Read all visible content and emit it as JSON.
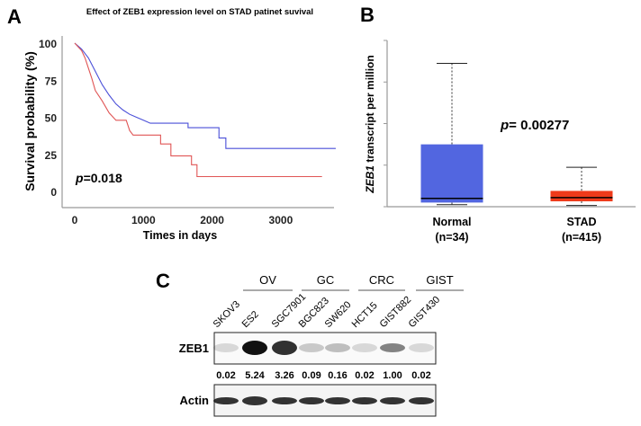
{
  "panel_labels": {
    "a": "A",
    "b": "B",
    "c": "C"
  },
  "chart_data": [
    {
      "type": "line",
      "panel": "A",
      "title": "Effect of ZEB1 expression level on STAD patinet suvival",
      "xlabel": "Times in days",
      "ylabel": "Survival probability (%)",
      "xticks": [
        "0",
        "1000",
        "2000",
        "3000"
      ],
      "yticks": [
        "0",
        "25",
        "50",
        "75",
        "100"
      ],
      "xlim": [
        0,
        3800
      ],
      "ylim": [
        0,
        100
      ],
      "annotation": {
        "p_symbol": "p",
        "p_value": "=0.018"
      },
      "colors": {
        "blue": "#4a4fd8",
        "red": "#e05555"
      },
      "series": [
        {
          "color": "#4a4fd8",
          "points": [
            [
              0,
              100
            ],
            [
              100,
              96
            ],
            [
              200,
              90
            ],
            [
              300,
              81
            ],
            [
              400,
              72
            ],
            [
              500,
              65
            ],
            [
              600,
              59
            ],
            [
              700,
              55
            ],
            [
              800,
              52
            ],
            [
              900,
              50
            ],
            [
              1000,
              48
            ],
            [
              1100,
              46
            ],
            [
              1650,
              46
            ],
            [
              1650,
              43
            ],
            [
              2100,
              43
            ],
            [
              2100,
              36
            ],
            [
              2200,
              36
            ],
            [
              2200,
              29
            ],
            [
              3800,
              29
            ]
          ]
        },
        {
          "color": "#e05555",
          "points": [
            [
              0,
              100
            ],
            [
              100,
              95
            ],
            [
              150,
              90
            ],
            [
              250,
              76
            ],
            [
              300,
              68
            ],
            [
              400,
              61
            ],
            [
              500,
              53
            ],
            [
              600,
              48
            ],
            [
              750,
              48
            ],
            [
              800,
              41
            ],
            [
              850,
              38
            ],
            [
              1250,
              38
            ],
            [
              1250,
              32
            ],
            [
              1400,
              32
            ],
            [
              1400,
              24
            ],
            [
              1700,
              24
            ],
            [
              1700,
              18
            ],
            [
              1780,
              18
            ],
            [
              1780,
              10
            ],
            [
              3600,
              10
            ]
          ]
        }
      ]
    },
    {
      "type": "box",
      "panel": "B",
      "ylabel_italic": "ZEB1",
      "ylabel_rest": " transcript per million",
      "yticks_count": 5,
      "annotation": {
        "p_symbol": "p",
        "p_value": "= 0.00277"
      },
      "categories": [
        {
          "name": "Normal",
          "n": "(n=34)",
          "color": "#5266e0",
          "min": 0.05,
          "q1": 0.1,
          "median": 0.2,
          "q3": 1.5,
          "max": 3.45
        },
        {
          "name": "STAD",
          "n": "(n=415)",
          "color": "#ee3a1a",
          "min": 0.03,
          "q1": 0.13,
          "median": 0.22,
          "q3": 0.38,
          "max": 0.95
        }
      ],
      "ylim": [
        0,
        4
      ]
    }
  ],
  "western_blot": {
    "groups": [
      "OV",
      "GC",
      "CRC",
      "GIST"
    ],
    "lanes": [
      "SKOV3",
      "ES2",
      "SGC7901",
      "BGC823",
      "SW620",
      "HCT15",
      "GIST882",
      "GIST430"
    ],
    "rows": [
      "ZEB1",
      "Actin"
    ],
    "zeb1_quant": [
      "0.02",
      "5.24",
      "3.26",
      "0.09",
      "0.16",
      "0.02",
      "1.00",
      "0.02"
    ]
  }
}
